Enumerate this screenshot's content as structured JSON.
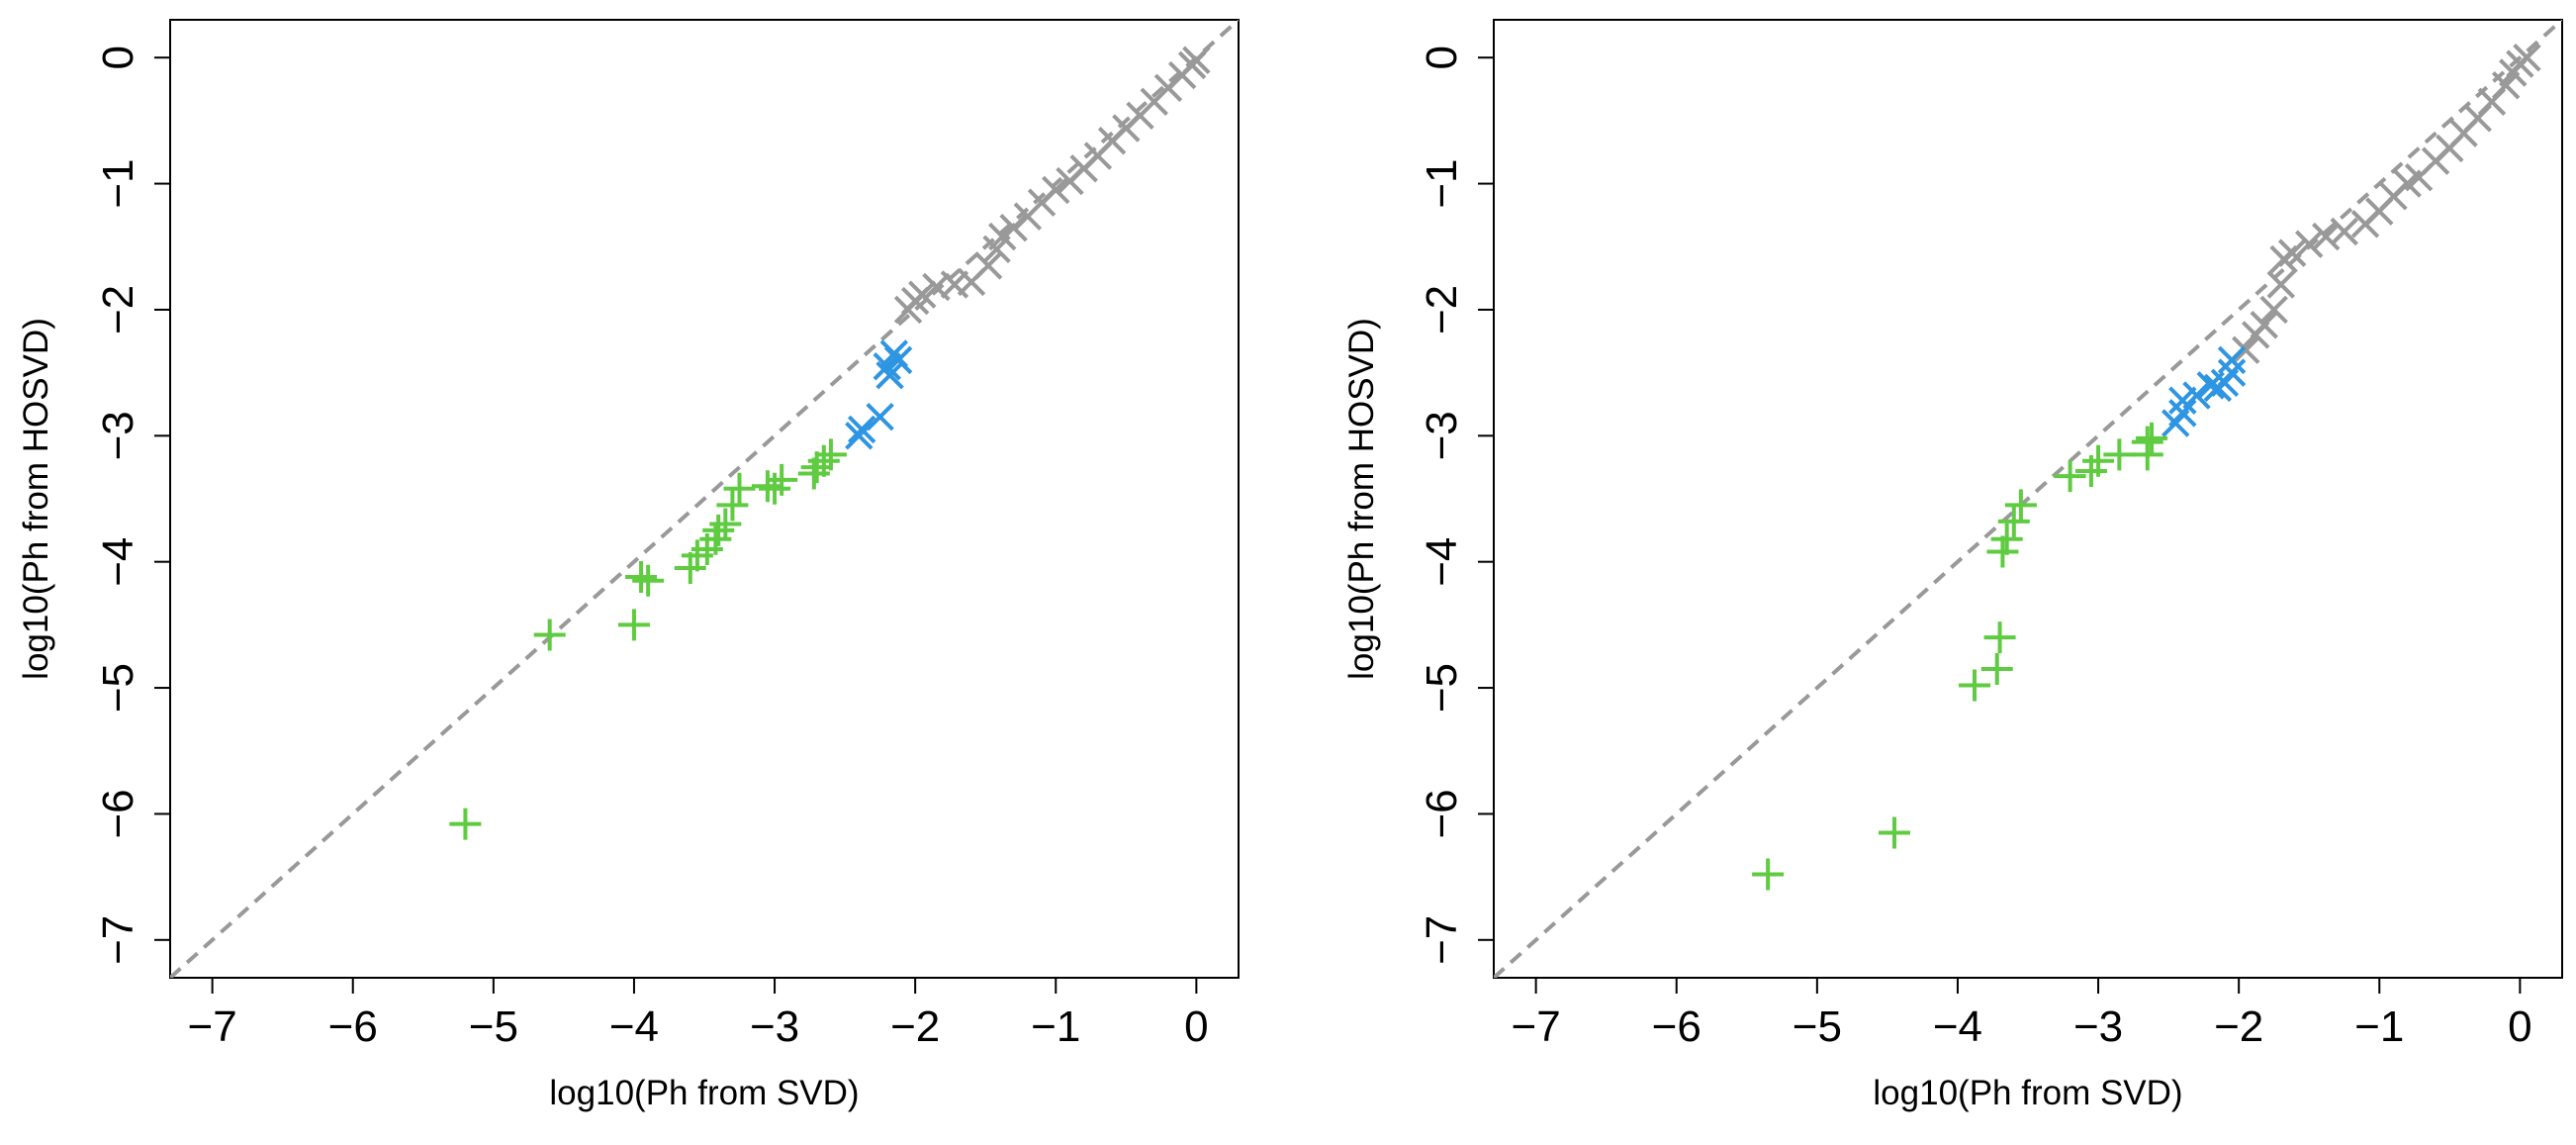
{
  "chart_data": [
    {
      "type": "scatter",
      "panel": "left",
      "xlabel": "log10(Ph from SVD)",
      "ylabel": "log10(Ph from HOSVD)",
      "xlim": [
        -7.3,
        0.3
      ],
      "ylim": [
        -7.3,
        0.3
      ],
      "xticks": [
        -7,
        -6,
        -5,
        -4,
        -3,
        -2,
        -1,
        0
      ],
      "yticks": [
        -7,
        -6,
        -5,
        -4,
        -3,
        -2,
        -1,
        0
      ],
      "xtick_labels": [
        "−7",
        "−6",
        "−5",
        "−4",
        "−3",
        "−2",
        "−1",
        "0"
      ],
      "ytick_labels": [
        "−7",
        "−6",
        "−5",
        "−4",
        "−3",
        "−2",
        "−1",
        "0"
      ],
      "reference_line": {
        "style": "dashed",
        "slope": 1,
        "intercept": 0,
        "color": "#999999"
      },
      "series": [
        {
          "name": "grey",
          "marker": "x",
          "color": "#999999",
          "points": [
            [
              -2.05,
              -2.0
            ],
            [
              -2.0,
              -1.93
            ],
            [
              -1.95,
              -1.88
            ],
            [
              -1.85,
              -1.82
            ],
            [
              -1.72,
              -1.8
            ],
            [
              -1.6,
              -1.78
            ],
            [
              -1.48,
              -1.65
            ],
            [
              -1.42,
              -1.52
            ],
            [
              -1.38,
              -1.42
            ],
            [
              -1.3,
              -1.35
            ],
            [
              -1.2,
              -1.26
            ],
            [
              -1.1,
              -1.15
            ],
            [
              -1.0,
              -1.05
            ],
            [
              -0.9,
              -0.98
            ],
            [
              -0.8,
              -0.88
            ],
            [
              -0.7,
              -0.78
            ],
            [
              -0.6,
              -0.66
            ],
            [
              -0.5,
              -0.56
            ],
            [
              -0.4,
              -0.46
            ],
            [
              -0.3,
              -0.35
            ],
            [
              -0.2,
              -0.24
            ],
            [
              -0.1,
              -0.14
            ],
            [
              -0.03,
              -0.06
            ],
            [
              0.0,
              -0.02
            ]
          ]
        },
        {
          "name": "blue",
          "marker": "x",
          "color": "#2E95E2",
          "points": [
            [
              -2.15,
              -2.35
            ],
            [
              -2.12,
              -2.4
            ],
            [
              -2.2,
              -2.45
            ],
            [
              -2.18,
              -2.52
            ],
            [
              -2.25,
              -2.85
            ],
            [
              -2.38,
              -2.95
            ],
            [
              -2.4,
              -3.0
            ]
          ]
        },
        {
          "name": "green",
          "marker": "+",
          "color": "#5FCB41",
          "points": [
            [
              -2.6,
              -3.15
            ],
            [
              -2.65,
              -3.2
            ],
            [
              -2.7,
              -3.25
            ],
            [
              -2.72,
              -3.3
            ],
            [
              -2.95,
              -3.35
            ],
            [
              -3.0,
              -3.42
            ],
            [
              -3.05,
              -3.4
            ],
            [
              -3.25,
              -3.42
            ],
            [
              -3.3,
              -3.55
            ],
            [
              -3.35,
              -3.7
            ],
            [
              -3.4,
              -3.75
            ],
            [
              -3.42,
              -3.82
            ],
            [
              -3.48,
              -3.9
            ],
            [
              -3.55,
              -3.95
            ],
            [
              -3.6,
              -4.05
            ],
            [
              -3.9,
              -4.15
            ],
            [
              -3.95,
              -4.12
            ],
            [
              -4.0,
              -4.5
            ],
            [
              -4.6,
              -4.58
            ],
            [
              -5.2,
              -6.08
            ]
          ]
        }
      ]
    },
    {
      "type": "scatter",
      "panel": "right",
      "xlabel": "log10(Ph from SVD)",
      "ylabel": "log10(Ph from HOSVD)",
      "xlim": [
        -7.3,
        0.3
      ],
      "ylim": [
        -7.3,
        0.3
      ],
      "xticks": [
        -7,
        -6,
        -5,
        -4,
        -3,
        -2,
        -1,
        0
      ],
      "yticks": [
        -7,
        -6,
        -5,
        -4,
        -3,
        -2,
        -1,
        0
      ],
      "xtick_labels": [
        "−7",
        "−6",
        "−5",
        "−4",
        "−3",
        "−2",
        "−1",
        "0"
      ],
      "ytick_labels": [
        "−7",
        "−6",
        "−5",
        "−4",
        "−3",
        "−2",
        "−1",
        "0"
      ],
      "reference_line": {
        "style": "dashed",
        "slope": 1,
        "intercept": 0,
        "color": "#999999"
      },
      "series": [
        {
          "name": "grey",
          "marker": "x",
          "color": "#999999",
          "points": [
            [
              -1.95,
              -2.32
            ],
            [
              -1.88,
              -2.2
            ],
            [
              -1.82,
              -2.12
            ],
            [
              -1.75,
              -2.0
            ],
            [
              -1.7,
              -1.8
            ],
            [
              -1.68,
              -1.6
            ],
            [
              -1.62,
              -1.55
            ],
            [
              -1.5,
              -1.48
            ],
            [
              -1.38,
              -1.42
            ],
            [
              -1.25,
              -1.38
            ],
            [
              -1.1,
              -1.32
            ],
            [
              -1.0,
              -1.22
            ],
            [
              -0.9,
              -1.1
            ],
            [
              -0.8,
              -1.0
            ],
            [
              -0.72,
              -0.95
            ],
            [
              -0.6,
              -0.82
            ],
            [
              -0.5,
              -0.72
            ],
            [
              -0.4,
              -0.6
            ],
            [
              -0.3,
              -0.48
            ],
            [
              -0.2,
              -0.35
            ],
            [
              -0.1,
              -0.22
            ],
            [
              -0.05,
              -0.12
            ],
            [
              0.0,
              -0.05
            ],
            [
              0.05,
              0.0
            ]
          ]
        },
        {
          "name": "blue",
          "marker": "x",
          "color": "#2E95E2",
          "points": [
            [
              -2.05,
              -2.4
            ],
            [
              -2.05,
              -2.5
            ],
            [
              -2.1,
              -2.58
            ],
            [
              -2.15,
              -2.62
            ],
            [
              -2.2,
              -2.6
            ],
            [
              -2.3,
              -2.68
            ],
            [
              -2.4,
              -2.82
            ],
            [
              -2.45,
              -2.9
            ],
            [
              -2.4,
              -2.72
            ]
          ]
        },
        {
          "name": "green",
          "marker": "+",
          "color": "#5FCB41",
          "points": [
            [
              -2.62,
              -3.02
            ],
            [
              -2.65,
              -3.05
            ],
            [
              -2.65,
              -3.15
            ],
            [
              -2.85,
              -3.15
            ],
            [
              -3.0,
              -3.2
            ],
            [
              -3.05,
              -3.28
            ],
            [
              -3.2,
              -3.32
            ],
            [
              -3.55,
              -3.55
            ],
            [
              -3.6,
              -3.68
            ],
            [
              -3.65,
              -3.82
            ],
            [
              -3.68,
              -3.92
            ],
            [
              -3.7,
              -4.6
            ],
            [
              -3.72,
              -4.85
            ],
            [
              -3.88,
              -4.98
            ],
            [
              -4.45,
              -6.15
            ],
            [
              -5.35,
              -6.48
            ]
          ]
        }
      ]
    }
  ]
}
